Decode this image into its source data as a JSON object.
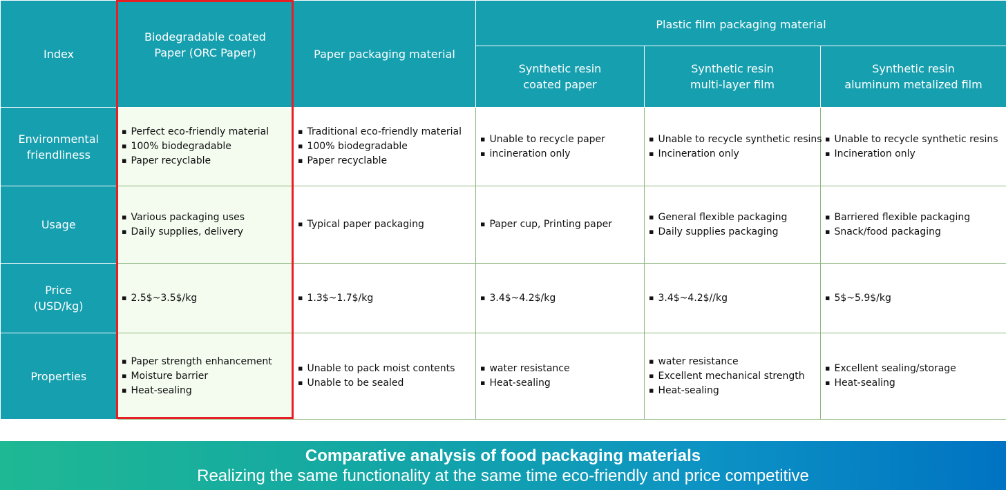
{
  "header": {
    "index": "Index",
    "orc": "Biodegradable coated\nPaper (ORC Paper)",
    "paper": "Paper packaging material",
    "plastic_group": "Plastic film packaging material",
    "resin_coated": "Synthetic resin\ncoated paper",
    "resin_multi": "Synthetic resin\nmulti-layer film",
    "resin_alu": "Synthetic resin\naluminum metalized film"
  },
  "rows": [
    {
      "label": "Environmental\nfriendliness",
      "cells": [
        [
          "Perfect eco-friendly material",
          "100% biodegradable",
          "Paper recyclable"
        ],
        [
          "Traditional eco-friendly material",
          "100% biodegradable",
          "Paper recyclable"
        ],
        [
          "Unable to recycle paper",
          "incineration only"
        ],
        [
          "Unable to recycle synthetic resins",
          "Incineration only"
        ],
        [
          "Unable to recycle synthetic resins",
          "Incineration only"
        ]
      ]
    },
    {
      "label": "Usage",
      "cells": [
        [
          "Various packaging uses",
          "Daily supplies, delivery"
        ],
        [
          "Typical paper packaging"
        ],
        [
          "Paper cup, Printing paper"
        ],
        [
          "General flexible packaging",
          "Daily supplies packaging"
        ],
        [
          "Barriered flexible packaging",
          "Snack/food packaging"
        ]
      ]
    },
    {
      "label": "Price\n(USD/kg)",
      "cells": [
        [
          "2.5$~3.5$/kg"
        ],
        [
          "1.3$~1.7$/kg"
        ],
        [
          "3.4$~4.2$/kg"
        ],
        [
          "3.4$~4.2$//kg"
        ],
        [
          "5$~5.9$/kg"
        ]
      ]
    },
    {
      "label": "Properties",
      "cells": [
        [
          "Paper strength enhancement",
          "Moisture barrier",
          "Heat-sealing"
        ],
        [
          "Unable to pack moist contents",
          "Unable to be sealed"
        ],
        [
          "water resistance",
          "Heat-sealing"
        ],
        [
          "water resistance",
          "Excellent mechanical strength",
          "Heat-sealing"
        ],
        [
          "Excellent sealing/storage",
          "Heat-sealing"
        ]
      ]
    }
  ],
  "banner": {
    "title": "Comparative analysis of food packaging materials",
    "subtitle": "Realizing the same functionality at the same time eco-friendly and price competitive"
  },
  "colors": {
    "header_teal": "#169faf",
    "grid_green": "#8ab57c",
    "highlight_red": "#e81e25",
    "highlight_fill": "#f4fbef"
  }
}
